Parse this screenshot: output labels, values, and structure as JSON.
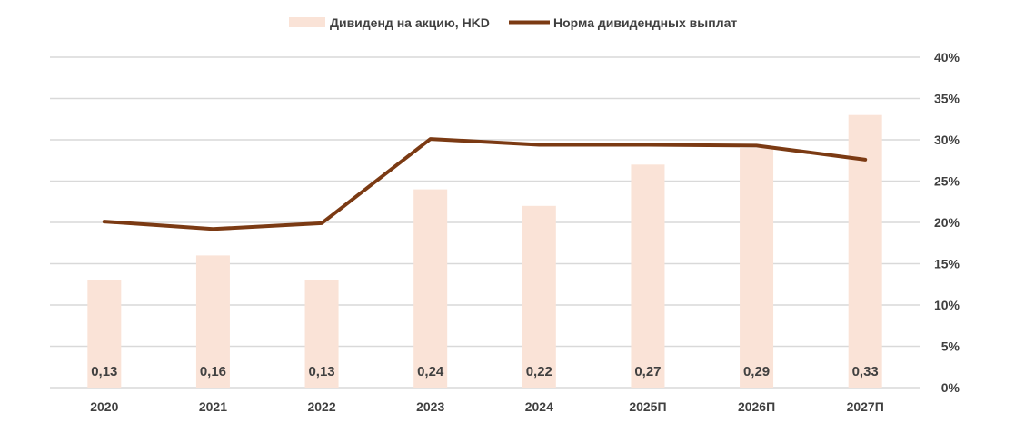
{
  "chart_data": {
    "type": "bar",
    "categories": [
      "2020",
      "2021",
      "2022",
      "2023",
      "2024",
      "2025П",
      "2026П",
      "2027П"
    ],
    "series": [
      {
        "name": "Дивиденд на акцию, HKD",
        "type": "bar",
        "axis": "value",
        "values": [
          0.13,
          0.16,
          0.13,
          0.24,
          0.22,
          0.27,
          0.29,
          0.33
        ],
        "labels": [
          "0,13",
          "0,16",
          "0,13",
          "0,24",
          "0,22",
          "0,27",
          "0,29",
          "0,33"
        ],
        "color": "#FAE3D7"
      },
      {
        "name": "Норма дивидендных выплат",
        "type": "line",
        "axis": "right",
        "values": [
          20.1,
          19.2,
          19.9,
          30.1,
          29.4,
          29.4,
          29.3,
          27.6
        ],
        "color": "#7B3A13"
      }
    ],
    "bar_scale_max": 0.4,
    "right_axis": {
      "ylim": [
        0,
        40
      ],
      "ticks": [
        "0%",
        "5%",
        "10%",
        "15%",
        "20%",
        "25%",
        "30%",
        "35%",
        "40%"
      ]
    },
    "grid": true,
    "legend_position": "top-center",
    "gridline_color": "#D9D9D9",
    "text_color": "#404040"
  }
}
